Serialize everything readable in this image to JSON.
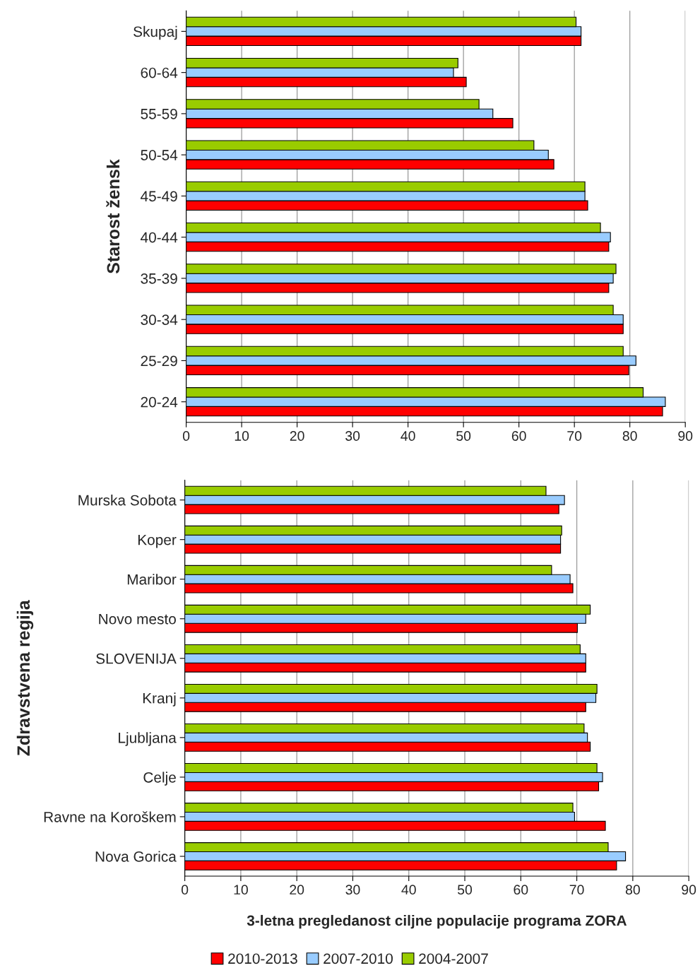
{
  "chart_data": [
    {
      "type": "bar",
      "orientation": "horizontal",
      "ylabel": "Starost žensk",
      "categories": [
        "Skupaj",
        "60-64",
        "55-59",
        "50-54",
        "45-49",
        "40-44",
        "35-39",
        "30-34",
        "25-29",
        "20-24"
      ],
      "series": [
        {
          "name": "2010-2013",
          "color": "#ff0000",
          "values": [
            71.2,
            50.5,
            58.9,
            66.3,
            72.4,
            76.2,
            76.2,
            78.8,
            79.8,
            85.9
          ]
        },
        {
          "name": "2007-2010",
          "color": "#99ccff",
          "values": [
            71.2,
            48.2,
            55.3,
            65.3,
            71.9,
            76.5,
            77.0,
            78.8,
            81.1,
            86.4
          ]
        },
        {
          "name": "2004-2007",
          "color": "#99cc00",
          "values": [
            70.3,
            49.0,
            52.8,
            62.7,
            71.9,
            74.7,
            77.5,
            77.0,
            78.8,
            82.4
          ]
        }
      ],
      "xlim": [
        0,
        90
      ],
      "xticks": [
        0,
        10,
        20,
        30,
        40,
        50,
        60,
        70,
        80,
        90
      ],
      "grid": "x",
      "legend": "bottom"
    },
    {
      "type": "bar",
      "orientation": "horizontal",
      "ylabel": "Zdravstvena regija",
      "xlabel": "3-letna pregledanost ciljne populacije programa ZORA",
      "categories": [
        "Murska Sobota",
        "Koper",
        "Maribor",
        "Novo mesto",
        "SLOVENIJA",
        "Kranj",
        "Ljubljana",
        "Celje",
        "Ravne na Koroškem",
        "Nova Gorica"
      ],
      "series": [
        {
          "color": "#ff0000",
          "values": [
            66.8,
            67.1,
            69.3,
            70.1,
            71.6,
            71.6,
            72.4,
            73.9,
            75.1,
            77.1
          ]
        },
        {
          "color": "#99ccff",
          "values": [
            67.8,
            67.1,
            68.8,
            71.6,
            71.6,
            73.4,
            71.9,
            74.6,
            69.6,
            78.7
          ]
        },
        {
          "color": "#99cc00",
          "values": [
            64.5,
            67.3,
            65.5,
            72.4,
            70.6,
            73.6,
            71.3,
            73.6,
            69.3,
            75.6
          ]
        }
      ],
      "xlim": [
        0,
        90
      ],
      "xticks": [
        0,
        10,
        20,
        30,
        40,
        50,
        60,
        70,
        80,
        90
      ],
      "grid": "x"
    }
  ]
}
